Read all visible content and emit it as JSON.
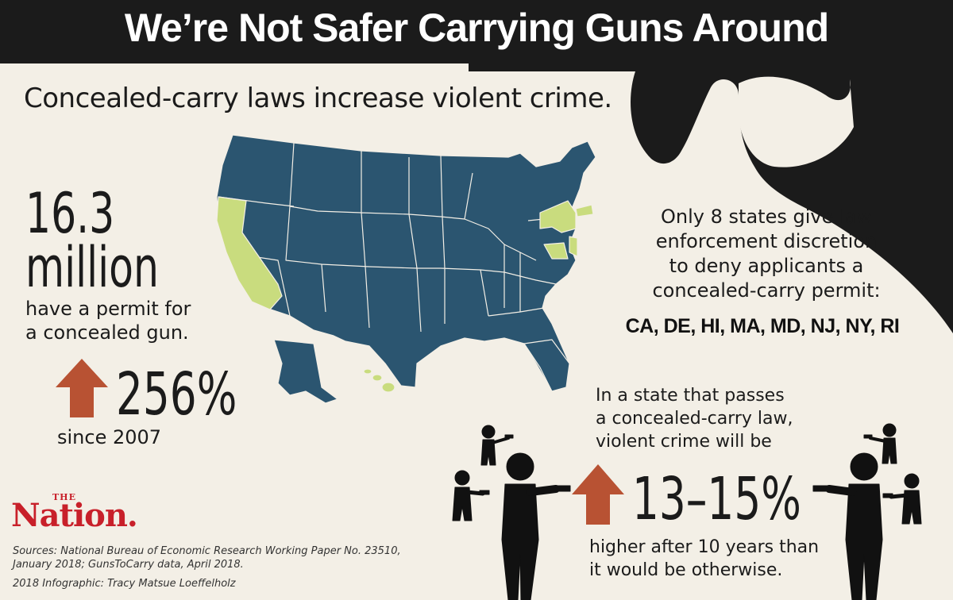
{
  "title": "We’re Not Safer Carrying Guns Around",
  "subtitle": "Concealed-carry laws increase violent crime.",
  "permit_stat": {
    "number": "16.3",
    "unit": "million",
    "line1": "have a permit for",
    "line2": "a concealed gun."
  },
  "growth_stat": {
    "value": "256%",
    "since": "since 2007"
  },
  "discretion": {
    "line1": "Only 8 states give law",
    "line2": "enforcement discretion",
    "line3": "to deny applicants a",
    "line4": "concealed-carry permit:",
    "states": "CA, DE, HI, MA, MD, NJ, NY, RI"
  },
  "crime_stat": {
    "line1": "In a state that passes",
    "line2": "a concealed-carry law,",
    "line3": "violent crime will be",
    "value": "13–15%",
    "after1": "higher after 10 years than",
    "after2": "it would be otherwise."
  },
  "logo": {
    "the": "THE",
    "name": "Nation."
  },
  "sources": {
    "line1": "Sources: National Bureau of Economic Research Working Paper No. 23510,",
    "line2": "January 2018; GunsToCarry data, April 2018.",
    "credit": "2018 Infographic: Tracy Matsue Loeffelholz"
  },
  "colors": {
    "background": "#f3efe6",
    "dark": "#1b1b1b",
    "map_blue": "#2b5570",
    "map_green": "#c9dc7e",
    "arrow": "#b85233",
    "logo_red": "#c8202a"
  },
  "icons": [
    "gun-silhouette",
    "us-map",
    "up-arrow",
    "gunman-figure"
  ]
}
